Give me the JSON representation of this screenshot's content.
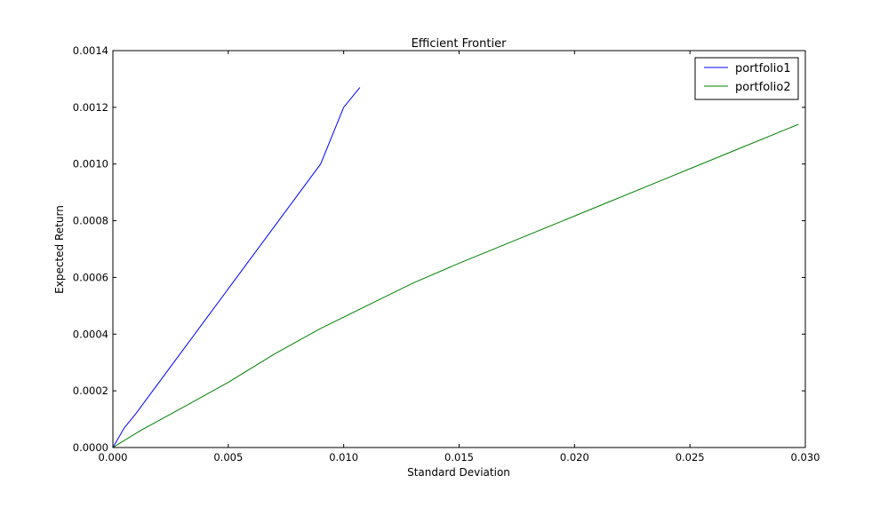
{
  "chart_data": {
    "type": "line",
    "title": "Efficient Frontier",
    "xlabel": "Standard Deviation",
    "ylabel": "Expected Return",
    "xlim": [
      0.0,
      0.03
    ],
    "ylim": [
      0.0,
      0.0014
    ],
    "xticks": [
      0.0,
      0.005,
      0.01,
      0.015,
      0.02,
      0.025,
      0.03
    ],
    "xtick_labels": [
      "0.000",
      "0.005",
      "0.010",
      "0.015",
      "0.020",
      "0.025",
      "0.030"
    ],
    "yticks": [
      0.0,
      0.0002,
      0.0004,
      0.0006,
      0.0008,
      0.001,
      0.0012,
      0.0014
    ],
    "ytick_labels": [
      "0.0000",
      "0.0002",
      "0.0004",
      "0.0006",
      "0.0008",
      "0.0010",
      "0.0012",
      "0.0014"
    ],
    "grid": false,
    "legend_position": "top-right",
    "series": [
      {
        "name": "portfolio1",
        "color": "#0000ff",
        "x": [
          0.0,
          0.0005,
          0.001,
          0.002,
          0.003,
          0.004,
          0.005,
          0.006,
          0.007,
          0.008,
          0.009,
          0.01,
          0.0107
        ],
        "y": [
          0.0,
          7e-05,
          0.00012,
          0.00023,
          0.00034,
          0.00045,
          0.00056,
          0.00067,
          0.00078,
          0.00089,
          0.001,
          0.0012,
          0.00127
        ]
      },
      {
        "name": "portfolio2",
        "color": "#008000",
        "x": [
          0.0,
          0.0012,
          0.003,
          0.005,
          0.007,
          0.009,
          0.011,
          0.013,
          0.015,
          0.018,
          0.021,
          0.024,
          0.027,
          0.0297
        ],
        "y": [
          0.0,
          6e-05,
          0.00014,
          0.00023,
          0.00033,
          0.00042,
          0.0005,
          0.00058,
          0.00065,
          0.00075,
          0.00085,
          0.00095,
          0.00105,
          0.00114
        ]
      }
    ]
  }
}
